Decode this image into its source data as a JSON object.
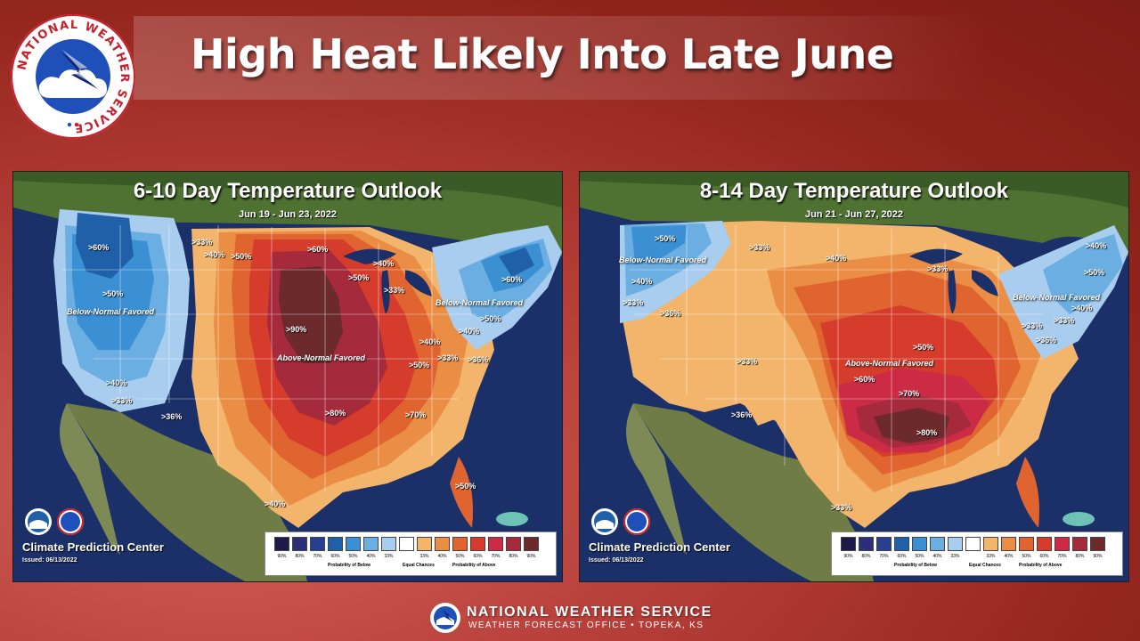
{
  "header": {
    "title": "High Heat Likely Into Late June",
    "logo_text": "NATIONAL WEATHER SERVICE"
  },
  "panels": [
    {
      "title": "6-10 Day Temperature Outlook",
      "dates": "Jun 19 - Jun 23, 2022",
      "source": "Climate Prediction Center",
      "issued": "Issued: 06/13/2022",
      "favored_labels": [
        "Below-Normal Favored",
        "Below-Normal Favored",
        "Above-Normal Favored"
      ],
      "prob_labels": [
        ">60%",
        ">50%",
        ">40%",
        ">33%",
        ">33%",
        ">40%",
        ">50%",
        ">60%",
        ">90%",
        ">50%",
        ">40%",
        ">33%",
        ">60%",
        ">50%",
        ">40%",
        ">50%",
        ">40%",
        ">33%",
        ">36%",
        ">80%",
        ">70%",
        ">36%",
        ">50%",
        ">40%"
      ]
    },
    {
      "title": "8-14 Day Temperature Outlook",
      "dates": "Jun 21 - Jun 27, 2022",
      "source": "Climate Prediction Center",
      "issued": "Issued: 06/13/2022",
      "favored_labels": [
        "Below-Normal Favored",
        "Below-Normal Favored",
        "Above-Normal Favored"
      ],
      "prob_labels": [
        ">50%",
        ">40%",
        ">33%",
        ">36%",
        ">33%",
        ">40%",
        ">33%",
        ">50%",
        ">40%",
        ">33%",
        ">33%",
        ">36%",
        ">33%",
        ">60%",
        ">70%",
        ">50%",
        ">80%",
        ">36%",
        ">33%",
        ">40%"
      ]
    }
  ],
  "legend": {
    "below_ticks": [
      "90%",
      "80%",
      "70%",
      "60%",
      "50%",
      "40%",
      "33%"
    ],
    "above_ticks": [
      "33%",
      "40%",
      "50%",
      "60%",
      "70%",
      "80%",
      "90%"
    ],
    "below_caption": "Probability of Below",
    "equal_caption": "Equal Chances",
    "above_caption": "Probability of Above",
    "colors_below": [
      "#1d1a4a",
      "#2c2e7a",
      "#283f8f",
      "#1f60a9",
      "#3b8fd3",
      "#6aaee2",
      "#a9cdef"
    ],
    "color_equal": "#ffffff",
    "colors_above": [
      "#f2b56b",
      "#ea8e45",
      "#df6430",
      "#d53c2c",
      "#cb2b45",
      "#a52a3c",
      "#6d2a2d"
    ]
  },
  "footer": {
    "line1": "NATIONAL WEATHER SERVICE",
    "line2": "WEATHER FORECAST OFFICE  •  TOPEKA, KS"
  }
}
